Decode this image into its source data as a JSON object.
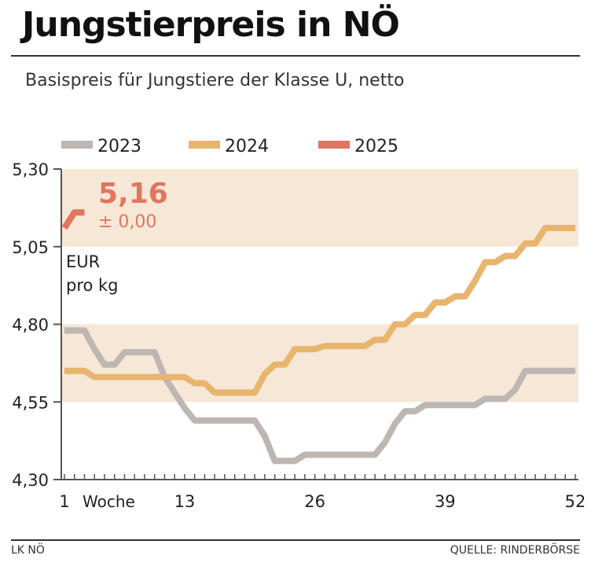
{
  "header": {
    "title": "Jungstierpreis in NÖ",
    "subtitle": "Basispreis für Jungstiere der Klasse U, netto"
  },
  "footer": {
    "left": "LK NÖ",
    "right": "QUELLE: RINDERBÖRSE"
  },
  "colors": {
    "2023": "#bdb6b2",
    "2024": "#e8b56e",
    "2025": "#e07561",
    "band": "#f6e7d6",
    "axis": "#555555"
  },
  "chart_data": {
    "type": "line",
    "title": "Jungstierpreis in NÖ",
    "subtitle": "Basispreis für Jungstiere der Klasse U, netto",
    "xlabel": "Woche",
    "ylabel": "EUR pro kg",
    "ylabel_lines": [
      "EUR",
      "pro kg"
    ],
    "ylim": [
      4.3,
      5.3
    ],
    "xlim": [
      1,
      52
    ],
    "yticks": [
      4.3,
      4.55,
      4.8,
      5.05,
      5.3
    ],
    "ytick_labels": [
      "4,30",
      "4,55",
      "4,80",
      "5,05",
      "5,30"
    ],
    "xticks": [
      1,
      13,
      26,
      39,
      52
    ],
    "xtick_labels": [
      "1",
      "13",
      "26",
      "39",
      "52"
    ],
    "legend_position": "top-left",
    "bands": [
      [
        4.55,
        4.8
      ],
      [
        5.05,
        5.3
      ]
    ],
    "annotation": {
      "value": "5,16",
      "change": "± 0,00"
    },
    "series": [
      {
        "name": "2023",
        "color": "#bdb6b2",
        "x": [
          1,
          2,
          3,
          4,
          5,
          6,
          7,
          8,
          9,
          10,
          11,
          12,
          13,
          14,
          15,
          16,
          17,
          18,
          19,
          20,
          21,
          22,
          23,
          24,
          25,
          26,
          27,
          28,
          29,
          30,
          31,
          32,
          33,
          34,
          35,
          36,
          37,
          38,
          39,
          40,
          41,
          42,
          43,
          44,
          45,
          46,
          47,
          48,
          49,
          50,
          51,
          52
        ],
        "values": [
          4.78,
          4.78,
          4.78,
          4.72,
          4.67,
          4.67,
          4.71,
          4.71,
          4.71,
          4.71,
          4.63,
          4.58,
          4.53,
          4.49,
          4.49,
          4.49,
          4.49,
          4.49,
          4.49,
          4.49,
          4.44,
          4.36,
          4.36,
          4.36,
          4.38,
          4.38,
          4.38,
          4.38,
          4.38,
          4.38,
          4.38,
          4.38,
          4.42,
          4.48,
          4.52,
          4.52,
          4.54,
          4.54,
          4.54,
          4.54,
          4.54,
          4.54,
          4.56,
          4.56,
          4.56,
          4.59,
          4.65,
          4.65,
          4.65,
          4.65,
          4.65,
          4.65
        ]
      },
      {
        "name": "2024",
        "color": "#e8b56e",
        "x": [
          1,
          2,
          3,
          4,
          5,
          6,
          7,
          8,
          9,
          10,
          11,
          12,
          13,
          14,
          15,
          16,
          17,
          18,
          19,
          20,
          21,
          22,
          23,
          24,
          25,
          26,
          27,
          28,
          29,
          30,
          31,
          32,
          33,
          34,
          35,
          36,
          37,
          38,
          39,
          40,
          41,
          42,
          43,
          44,
          45,
          46,
          47,
          48,
          49,
          50,
          51,
          52
        ],
        "values": [
          4.65,
          4.65,
          4.65,
          4.63,
          4.63,
          4.63,
          4.63,
          4.63,
          4.63,
          4.63,
          4.63,
          4.63,
          4.63,
          4.61,
          4.61,
          4.58,
          4.58,
          4.58,
          4.58,
          4.58,
          4.64,
          4.67,
          4.67,
          4.72,
          4.72,
          4.72,
          4.73,
          4.73,
          4.73,
          4.73,
          4.73,
          4.75,
          4.75,
          4.8,
          4.8,
          4.83,
          4.83,
          4.87,
          4.87,
          4.89,
          4.89,
          4.94,
          5.0,
          5.0,
          5.02,
          5.02,
          5.06,
          5.06,
          5.11,
          5.11,
          5.11,
          5.11
        ]
      },
      {
        "name": "2025",
        "color": "#e07561",
        "x": [
          1,
          2,
          3
        ],
        "values": [
          5.11,
          5.16,
          5.16
        ]
      }
    ]
  }
}
